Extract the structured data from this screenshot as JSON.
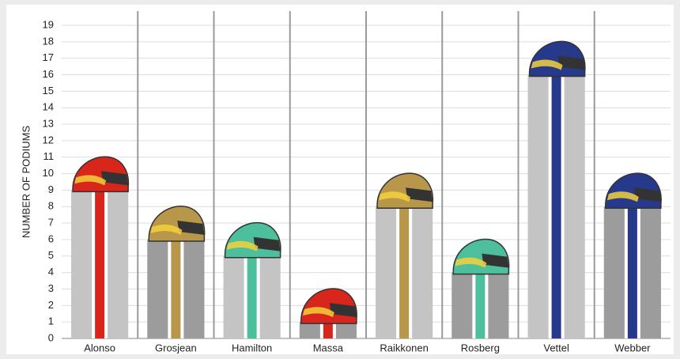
{
  "chart_data": {
    "type": "bar",
    "y_axis_label": "NUMBER OF PODIUMS",
    "categories": [
      "Alonso",
      "Grosjean",
      "Hamilton",
      "Massa",
      "Raikkonen",
      "Rosberg",
      "Vettel",
      "Webber"
    ],
    "values": [
      9,
      6,
      5,
      1,
      8,
      4,
      16,
      8
    ],
    "bar_colors": [
      "#c4c4c4",
      "#9c9c9c",
      "#c4c4c4",
      "#9c9c9c",
      "#c4c4c4",
      "#9c9c9c",
      "#c4c4c4",
      "#9c9c9c"
    ],
    "stripe_colors": [
      "#d8261d",
      "#b8964a",
      "#4dbf9c",
      "#d8261d",
      "#b8964a",
      "#4dbf9c",
      "#27398a",
      "#27398a"
    ],
    "ylim": [
      0,
      19
    ],
    "yticks": [
      0,
      1,
      2,
      3,
      4,
      5,
      6,
      7,
      8,
      9,
      10,
      11,
      12,
      13,
      14,
      15,
      16,
      17,
      18,
      19
    ],
    "grid": true
  }
}
